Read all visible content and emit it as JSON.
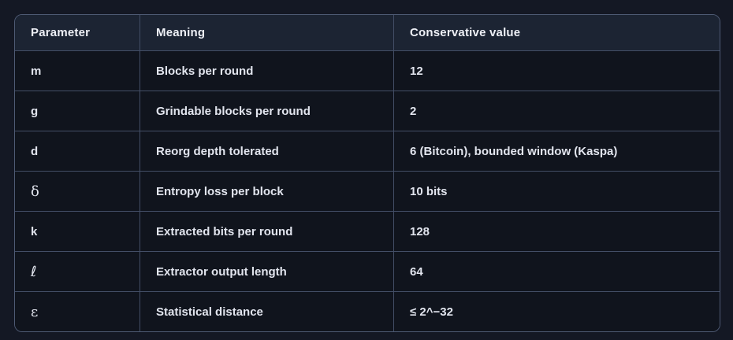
{
  "colors": {
    "page_bg": "#141824",
    "header_bg": "#1c2433",
    "row_bg": "#10141d",
    "border_outer": "#4e5a74",
    "border_inner": "#434e66",
    "text": "#e2e5ee",
    "header_text": "#eef0f6"
  },
  "table": {
    "columns": [
      {
        "label": "Parameter"
      },
      {
        "label": "Meaning"
      },
      {
        "label": "Conservative value"
      }
    ],
    "rows": [
      {
        "parameter": "m",
        "meaning": "Blocks per round",
        "value": "12"
      },
      {
        "parameter": "g",
        "meaning": "Grindable blocks per round",
        "value": "2"
      },
      {
        "parameter": "d",
        "meaning": "Reorg depth tolerated",
        "value": "6 (Bitcoin), bounded window (Kaspa)"
      },
      {
        "parameter": "δ",
        "meaning": "Entropy loss per block",
        "value": "10 bits"
      },
      {
        "parameter": "k",
        "meaning": "Extracted bits per round",
        "value": "128"
      },
      {
        "parameter": "ℓ",
        "meaning": "Extractor output length",
        "value": "64"
      },
      {
        "parameter": "ε",
        "meaning": "Statistical distance",
        "value": "≤ 2^−32"
      }
    ]
  }
}
